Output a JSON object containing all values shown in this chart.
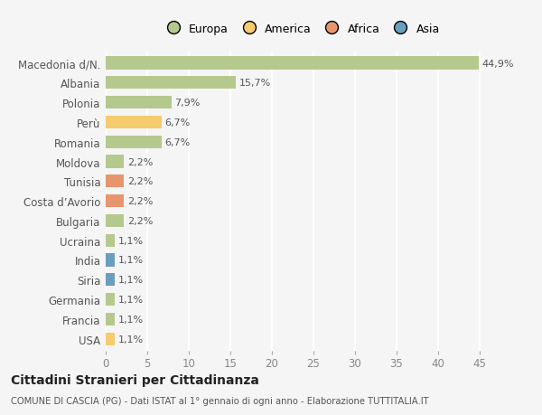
{
  "categories": [
    "Macedonia d/N.",
    "Albania",
    "Polonia",
    "Perù",
    "Romania",
    "Moldova",
    "Tunisia",
    "Costa d’Avorio",
    "Bulgaria",
    "Ucraina",
    "India",
    "Siria",
    "Germania",
    "Francia",
    "USA"
  ],
  "values": [
    44.9,
    15.7,
    7.9,
    6.7,
    6.7,
    2.2,
    2.2,
    2.2,
    2.2,
    1.1,
    1.1,
    1.1,
    1.1,
    1.1,
    1.1
  ],
  "labels": [
    "44,9%",
    "15,7%",
    "7,9%",
    "6,7%",
    "6,7%",
    "2,2%",
    "2,2%",
    "2,2%",
    "2,2%",
    "1,1%",
    "1,1%",
    "1,1%",
    "1,1%",
    "1,1%",
    "1,1%"
  ],
  "colors": [
    "#b5c98e",
    "#b5c98e",
    "#b5c98e",
    "#f5cb6e",
    "#b5c98e",
    "#b5c98e",
    "#e8956e",
    "#e8956e",
    "#b5c98e",
    "#b5c98e",
    "#6a9ec0",
    "#6a9ec0",
    "#b5c98e",
    "#b5c98e",
    "#f5cb6e"
  ],
  "legend_labels": [
    "Europa",
    "America",
    "Africa",
    "Asia"
  ],
  "legend_colors": [
    "#b5c98e",
    "#f5cb6e",
    "#e8956e",
    "#6a9ec0"
  ],
  "title": "Cittadini Stranieri per Cittadinanza",
  "subtitle": "COMUNE DI CASCIA (PG) - Dati ISTAT al 1° gennaio di ogni anno - Elaborazione TUTTITALIA.IT",
  "xlim": [
    0,
    47
  ],
  "xticks": [
    0,
    5,
    10,
    15,
    20,
    25,
    30,
    35,
    40,
    45
  ],
  "background_color": "#f5f5f5",
  "plot_bg_color": "#f5f5f5",
  "grid_color": "#ffffff",
  "bar_height": 0.65,
  "label_fontsize": 8.0,
  "ytick_fontsize": 8.5,
  "xtick_fontsize": 8.5
}
